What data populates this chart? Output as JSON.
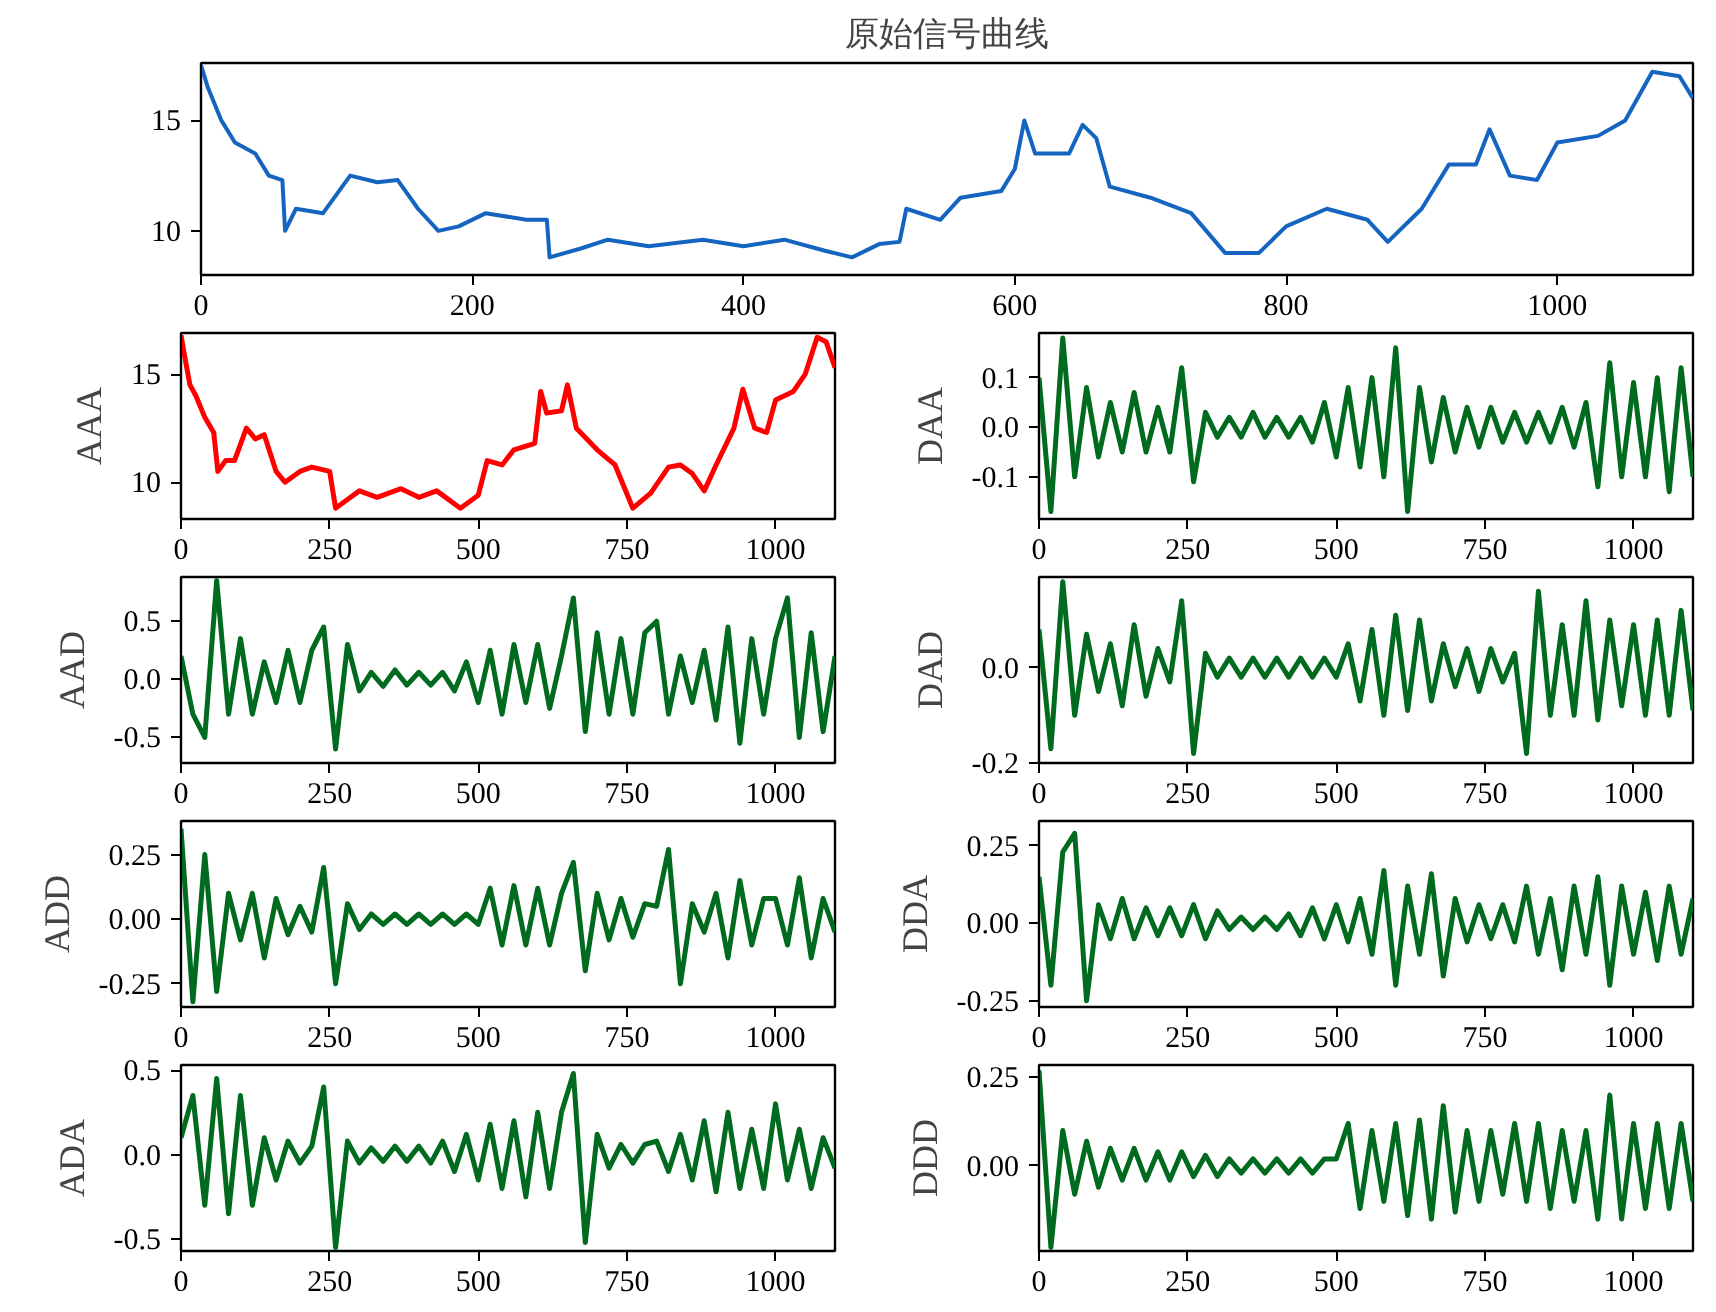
{
  "chart_data": [
    {
      "type": "line",
      "title": "原始信号曲线",
      "x": [
        0,
        5,
        15,
        25,
        40,
        50,
        60,
        62,
        70,
        90,
        110,
        130,
        145,
        160,
        175,
        190,
        210,
        240,
        255,
        257,
        280,
        300,
        330,
        370,
        400,
        430,
        460,
        480,
        500,
        515,
        520,
        545,
        560,
        590,
        600,
        607,
        615,
        640,
        650,
        660,
        670,
        700,
        730,
        755,
        780,
        800,
        830,
        860,
        875,
        900,
        920,
        940,
        950,
        965,
        985,
        1000,
        1030,
        1050,
        1070,
        1090,
        1100
      ],
      "series": [
        {
          "color": "#1565c0",
          "values": [
            17.5,
            16.5,
            15,
            14,
            13.5,
            12.5,
            12.3,
            10,
            11,
            10.8,
            12.5,
            12.2,
            12.3,
            11,
            10,
            10.2,
            10.8,
            10.5,
            10.5,
            8.8,
            9.2,
            9.6,
            9.3,
            9.6,
            9.3,
            9.6,
            9.1,
            8.8,
            9.4,
            9.5,
            11,
            10.5,
            11.5,
            11.8,
            12.8,
            15,
            13.5,
            13.5,
            14.8,
            14.2,
            12,
            11.5,
            10.8,
            9,
            9,
            10.2,
            11,
            10.5,
            9.5,
            11,
            13,
            13,
            14.6,
            12.5,
            12.3,
            14,
            14.3,
            15,
            17.2,
            17,
            16
          ]
        }
      ],
      "xlim": [
        0,
        1100
      ],
      "ylim": [
        8,
        17.6
      ],
      "xticks": [
        0,
        200,
        400,
        600,
        800,
        1000
      ],
      "yticks": [
        {
          "value": 10,
          "label": "10"
        },
        {
          "value": 15,
          "label": "15"
        }
      ]
    },
    {
      "type": "line",
      "ylabel": "AAA",
      "x": [
        0,
        5,
        15,
        25,
        40,
        55,
        62,
        75,
        90,
        110,
        125,
        140,
        160,
        175,
        200,
        220,
        250,
        260,
        280,
        300,
        330,
        370,
        400,
        430,
        470,
        500,
        515,
        540,
        560,
        595,
        605,
        615,
        640,
        650,
        665,
        700,
        730,
        760,
        790,
        820,
        840,
        860,
        880,
        900,
        930,
        945,
        965,
        985,
        1000,
        1030,
        1050,
        1070,
        1085,
        1100
      ],
      "series": [
        {
          "color": "#ff0000",
          "values": [
            16.8,
            16,
            14.5,
            14,
            13,
            12.3,
            10.5,
            11,
            11,
            12.5,
            12,
            12.2,
            10.5,
            10,
            10.5,
            10.7,
            10.5,
            8.8,
            9.2,
            9.6,
            9.3,
            9.7,
            9.3,
            9.6,
            8.8,
            9.4,
            11,
            10.8,
            11.5,
            11.8,
            14.2,
            13.2,
            13.3,
            14.5,
            12.5,
            11.5,
            10.8,
            8.8,
            9.5,
            10.7,
            10.8,
            10.4,
            9.6,
            10.8,
            12.5,
            14.3,
            12.5,
            12.3,
            13.8,
            14.2,
            15,
            16.7,
            16.5,
            15.3
          ]
        }
      ],
      "xlim": [
        0,
        1100
      ],
      "ylim": [
        8.3,
        16.9
      ],
      "xticks": [
        0,
        250,
        500,
        750,
        1000
      ],
      "yticks": [
        {
          "value": 10,
          "label": "10"
        },
        {
          "value": 15,
          "label": "15"
        }
      ]
    },
    {
      "type": "line",
      "ylabel": "DAA",
      "x": [
        0,
        20,
        40,
        60,
        80,
        100,
        120,
        140,
        160,
        180,
        200,
        220,
        240,
        260,
        280,
        300,
        320,
        340,
        360,
        380,
        400,
        420,
        440,
        460,
        480,
        500,
        520,
        540,
        560,
        580,
        600,
        620,
        640,
        660,
        680,
        700,
        720,
        740,
        760,
        780,
        800,
        820,
        840,
        860,
        880,
        900,
        920,
        940,
        960,
        980,
        1000,
        1020,
        1040,
        1060,
        1080,
        1100
      ],
      "series": [
        {
          "color": "#006b1e",
          "values": [
            0.1,
            -0.17,
            0.18,
            -0.1,
            0.08,
            -0.06,
            0.05,
            -0.05,
            0.07,
            -0.05,
            0.04,
            -0.05,
            0.12,
            -0.11,
            0.03,
            -0.02,
            0.02,
            -0.02,
            0.03,
            -0.02,
            0.02,
            -0.02,
            0.02,
            -0.03,
            0.05,
            -0.06,
            0.08,
            -0.08,
            0.1,
            -0.1,
            0.16,
            -0.17,
            0.08,
            -0.07,
            0.06,
            -0.05,
            0.04,
            -0.04,
            0.04,
            -0.03,
            0.03,
            -0.03,
            0.03,
            -0.03,
            0.04,
            -0.04,
            0.05,
            -0.12,
            0.13,
            -0.1,
            0.09,
            -0.1,
            0.1,
            -0.13,
            0.12,
            -0.1
          ]
        }
      ],
      "xlim": [
        0,
        1100
      ],
      "ylim": [
        -0.185,
        0.19
      ],
      "xticks": [
        0,
        250,
        500,
        750,
        1000
      ],
      "yticks": [
        {
          "value": -0.1,
          "label": "-0.1"
        },
        {
          "value": 0,
          "label": "0.0"
        },
        {
          "value": 0.1,
          "label": "0.1"
        }
      ]
    },
    {
      "type": "line",
      "ylabel": "AAD",
      "x": [
        0,
        20,
        40,
        60,
        80,
        100,
        120,
        140,
        160,
        180,
        200,
        220,
        240,
        260,
        280,
        300,
        320,
        340,
        360,
        380,
        400,
        420,
        440,
        460,
        480,
        500,
        520,
        540,
        560,
        580,
        600,
        620,
        640,
        660,
        680,
        700,
        720,
        740,
        760,
        780,
        800,
        820,
        840,
        860,
        880,
        900,
        920,
        940,
        960,
        980,
        1000,
        1020,
        1040,
        1060,
        1080,
        1100
      ],
      "series": [
        {
          "color": "#006b1e",
          "values": [
            0.2,
            -0.3,
            -0.5,
            0.85,
            -0.3,
            0.35,
            -0.3,
            0.15,
            -0.2,
            0.25,
            -0.2,
            0.25,
            0.45,
            -0.6,
            0.3,
            -0.1,
            0.06,
            -0.06,
            0.08,
            -0.05,
            0.06,
            -0.05,
            0.06,
            -0.1,
            0.15,
            -0.2,
            0.25,
            -0.3,
            0.3,
            -0.2,
            0.3,
            -0.25,
            0.2,
            0.7,
            -0.45,
            0.4,
            -0.3,
            0.35,
            -0.3,
            0.4,
            0.5,
            -0.3,
            0.2,
            -0.2,
            0.25,
            -0.35,
            0.45,
            -0.55,
            0.35,
            -0.3,
            0.35,
            0.7,
            -0.5,
            0.4,
            -0.45,
            0.2
          ]
        }
      ],
      "xlim": [
        0,
        1100
      ],
      "ylim": [
        -0.72,
        0.88
      ],
      "xticks": [
        0,
        250,
        500,
        750,
        1000
      ],
      "yticks": [
        {
          "value": -0.5,
          "label": "-0.5"
        },
        {
          "value": 0,
          "label": "0.0"
        },
        {
          "value": 0.5,
          "label": "0.5"
        }
      ]
    },
    {
      "type": "line",
      "ylabel": "DAD",
      "x": [
        0,
        20,
        40,
        60,
        80,
        100,
        120,
        140,
        160,
        180,
        200,
        220,
        240,
        260,
        280,
        300,
        320,
        340,
        360,
        380,
        400,
        420,
        440,
        460,
        480,
        500,
        520,
        540,
        560,
        580,
        600,
        620,
        640,
        660,
        680,
        700,
        720,
        740,
        760,
        780,
        800,
        820,
        840,
        860,
        880,
        900,
        920,
        940,
        960,
        980,
        1000,
        1020,
        1040,
        1060,
        1080,
        1100
      ],
      "series": [
        {
          "color": "#006b1e",
          "values": [
            0.08,
            -0.17,
            0.18,
            -0.1,
            0.07,
            -0.05,
            0.05,
            -0.08,
            0.09,
            -0.06,
            0.04,
            -0.03,
            0.14,
            -0.18,
            0.03,
            -0.02,
            0.02,
            -0.02,
            0.02,
            -0.02,
            0.02,
            -0.02,
            0.02,
            -0.02,
            0.02,
            -0.02,
            0.05,
            -0.07,
            0.08,
            -0.1,
            0.11,
            -0.09,
            0.1,
            -0.07,
            0.05,
            -0.04,
            0.04,
            -0.05,
            0.04,
            -0.03,
            0.03,
            -0.18,
            0.16,
            -0.1,
            0.09,
            -0.1,
            0.14,
            -0.11,
            0.1,
            -0.08,
            0.09,
            -0.1,
            0.1,
            -0.1,
            0.12,
            -0.09
          ]
        }
      ],
      "xlim": [
        0,
        1100
      ],
      "ylim": [
        -0.2,
        0.19
      ],
      "xticks": [
        0,
        250,
        500,
        750,
        1000
      ],
      "yticks": [
        {
          "value": -0.2,
          "label": "-0.2"
        },
        {
          "value": 0,
          "label": "0.0"
        }
      ]
    },
    {
      "type": "line",
      "ylabel": "ADD",
      "x": [
        0,
        20,
        40,
        60,
        80,
        100,
        120,
        140,
        160,
        180,
        200,
        220,
        240,
        260,
        280,
        300,
        320,
        340,
        360,
        380,
        400,
        420,
        440,
        460,
        480,
        500,
        520,
        540,
        560,
        580,
        600,
        620,
        640,
        660,
        680,
        700,
        720,
        740,
        760,
        780,
        800,
        820,
        840,
        860,
        880,
        900,
        920,
        940,
        960,
        980,
        1000,
        1020,
        1040,
        1060,
        1080,
        1100
      ],
      "series": [
        {
          "color": "#006b1e",
          "values": [
            0.35,
            -0.32,
            0.25,
            -0.28,
            0.1,
            -0.08,
            0.1,
            -0.15,
            0.08,
            -0.06,
            0.05,
            -0.05,
            0.2,
            -0.25,
            0.06,
            -0.04,
            0.02,
            -0.02,
            0.02,
            -0.02,
            0.02,
            -0.02,
            0.02,
            -0.02,
            0.02,
            -0.02,
            0.12,
            -0.1,
            0.13,
            -0.1,
            0.12,
            -0.1,
            0.1,
            0.22,
            -0.2,
            0.1,
            -0.08,
            0.08,
            -0.07,
            0.06,
            0.05,
            0.27,
            -0.25,
            0.06,
            -0.05,
            0.1,
            -0.15,
            0.15,
            -0.1,
            0.08,
            0.08,
            -0.1,
            0.16,
            -0.15,
            0.08,
            -0.05
          ]
        }
      ],
      "xlim": [
        0,
        1100
      ],
      "ylim": [
        -0.34,
        0.38
      ],
      "xticks": [
        0,
        250,
        500,
        750,
        1000
      ],
      "yticks": [
        {
          "value": -0.25,
          "label": "-0.25"
        },
        {
          "value": 0,
          "label": "0.00"
        },
        {
          "value": 0.25,
          "label": "0.25"
        }
      ]
    },
    {
      "type": "line",
      "ylabel": "DDA",
      "x": [
        0,
        20,
        40,
        60,
        80,
        100,
        120,
        140,
        160,
        180,
        200,
        220,
        240,
        260,
        280,
        300,
        320,
        340,
        360,
        380,
        400,
        420,
        440,
        460,
        480,
        500,
        520,
        540,
        560,
        580,
        600,
        620,
        640,
        660,
        680,
        700,
        720,
        740,
        760,
        780,
        800,
        820,
        840,
        860,
        880,
        900,
        920,
        940,
        960,
        980,
        1000,
        1020,
        1040,
        1060,
        1080,
        1100
      ],
      "series": [
        {
          "color": "#006b1e",
          "values": [
            0.15,
            -0.2,
            0.23,
            0.29,
            -0.25,
            0.06,
            -0.05,
            0.08,
            -0.05,
            0.05,
            -0.04,
            0.05,
            -0.04,
            0.06,
            -0.05,
            0.04,
            -0.02,
            0.02,
            -0.02,
            0.02,
            -0.02,
            0.03,
            -0.04,
            0.05,
            -0.05,
            0.06,
            -0.06,
            0.08,
            -0.1,
            0.17,
            -0.2,
            0.12,
            -0.1,
            0.16,
            -0.17,
            0.08,
            -0.06,
            0.06,
            -0.05,
            0.06,
            -0.06,
            0.12,
            -0.1,
            0.08,
            -0.15,
            0.12,
            -0.1,
            0.15,
            -0.2,
            0.12,
            -0.1,
            0.1,
            -0.12,
            0.12,
            -0.1,
            0.08
          ]
        }
      ],
      "xlim": [
        0,
        1100
      ],
      "ylim": [
        -0.27,
        0.33
      ],
      "xticks": [
        0,
        250,
        500,
        750,
        1000
      ],
      "yticks": [
        {
          "value": -0.25,
          "label": "-0.25"
        },
        {
          "value": 0,
          "label": "0.00"
        },
        {
          "value": 0.25,
          "label": "0.25"
        }
      ]
    },
    {
      "type": "line",
      "ylabel": "ADA",
      "x": [
        0,
        20,
        40,
        60,
        80,
        100,
        120,
        140,
        160,
        180,
        200,
        220,
        240,
        260,
        280,
        300,
        320,
        340,
        360,
        380,
        400,
        420,
        440,
        460,
        480,
        500,
        520,
        540,
        560,
        580,
        600,
        620,
        640,
        660,
        680,
        700,
        720,
        740,
        760,
        780,
        800,
        820,
        840,
        860,
        880,
        900,
        920,
        940,
        960,
        980,
        1000,
        1020,
        1040,
        1060,
        1080,
        1100
      ],
      "series": [
        {
          "color": "#006b1e",
          "values": [
            0.1,
            0.35,
            -0.3,
            0.45,
            -0.35,
            0.35,
            -0.3,
            0.1,
            -0.15,
            0.08,
            -0.05,
            0.05,
            0.4,
            -0.55,
            0.08,
            -0.05,
            0.04,
            -0.04,
            0.05,
            -0.04,
            0.05,
            -0.05,
            0.08,
            -0.1,
            0.12,
            -0.15,
            0.18,
            -0.2,
            0.2,
            -0.25,
            0.25,
            -0.2,
            0.25,
            0.48,
            -0.52,
            0.12,
            -0.08,
            0.06,
            -0.05,
            0.06,
            0.08,
            -0.1,
            0.12,
            -0.15,
            0.2,
            -0.22,
            0.25,
            -0.2,
            0.15,
            -0.2,
            0.3,
            -0.15,
            0.15,
            -0.2,
            0.1,
            -0.08
          ]
        }
      ],
      "xlim": [
        0,
        1100
      ],
      "ylim": [
        -0.57,
        0.53
      ],
      "xticks": [
        0,
        250,
        500,
        750,
        1000
      ],
      "yticks": [
        {
          "value": -0.5,
          "label": "-0.5"
        },
        {
          "value": 0,
          "label": "0.0"
        },
        {
          "value": 0.5,
          "label": "0.5"
        }
      ]
    },
    {
      "type": "line",
      "ylabel": "DDD",
      "x": [
        0,
        20,
        40,
        60,
        80,
        100,
        120,
        140,
        160,
        180,
        200,
        220,
        240,
        260,
        280,
        300,
        320,
        340,
        360,
        380,
        400,
        420,
        440,
        460,
        480,
        500,
        520,
        540,
        560,
        580,
        600,
        620,
        640,
        660,
        680,
        700,
        720,
        740,
        760,
        780,
        800,
        820,
        840,
        860,
        880,
        900,
        920,
        940,
        960,
        980,
        1000,
        1020,
        1040,
        1060,
        1080,
        1100
      ],
      "series": [
        {
          "color": "#006b1e",
          "values": [
            0.27,
            -0.23,
            0.1,
            -0.08,
            0.07,
            -0.06,
            0.05,
            -0.04,
            0.05,
            -0.04,
            0.04,
            -0.04,
            0.04,
            -0.03,
            0.03,
            -0.03,
            0.02,
            -0.02,
            0.02,
            -0.02,
            0.02,
            -0.02,
            0.02,
            -0.02,
            0.02,
            0.02,
            0.12,
            -0.12,
            0.1,
            -0.1,
            0.12,
            -0.14,
            0.13,
            -0.15,
            0.17,
            -0.13,
            0.1,
            -0.1,
            0.1,
            -0.08,
            0.12,
            -0.1,
            0.12,
            -0.12,
            0.1,
            -0.1,
            0.1,
            -0.15,
            0.2,
            -0.15,
            0.12,
            -0.12,
            0.12,
            -0.12,
            0.12,
            -0.1
          ]
        }
      ],
      "xlim": [
        0,
        1100
      ],
      "ylim": [
        -0.24,
        0.285
      ],
      "xticks": [
        0,
        250,
        500,
        750,
        1000
      ],
      "yticks": [
        {
          "value": 0,
          "label": "0.00"
        },
        {
          "value": 0.25,
          "label": "0.25"
        }
      ]
    }
  ]
}
